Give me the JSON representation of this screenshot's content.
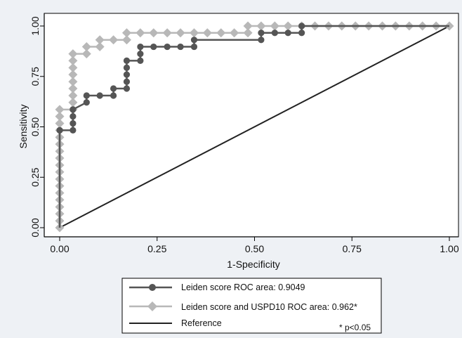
{
  "chart_data": {
    "type": "line",
    "xlabel": "1-Specificity",
    "ylabel": "Sensitivity",
    "xlim": [
      0,
      1
    ],
    "ylim": [
      0,
      1
    ],
    "xticks": [
      "0.00",
      "0.25",
      "0.50",
      "0.75",
      "1.00"
    ],
    "yticks": [
      "0.00",
      "0.25",
      "0.50",
      "0.75",
      "1.00"
    ],
    "grid": false,
    "legend_position": "bottom",
    "note": "* p<0.05",
    "series": [
      {
        "name": "Leiden score ROC area: 0.9049",
        "color": "#555555",
        "marker": "circle",
        "points": [
          [
            0,
            0
          ],
          [
            0,
            0.483
          ],
          [
            0.034,
            0.483
          ],
          [
            0.034,
            0.517
          ],
          [
            0.034,
            0.552
          ],
          [
            0.034,
            0.586
          ],
          [
            0.069,
            0.621
          ],
          [
            0.069,
            0.655
          ],
          [
            0.103,
            0.655
          ],
          [
            0.138,
            0.655
          ],
          [
            0.138,
            0.69
          ],
          [
            0.172,
            0.69
          ],
          [
            0.172,
            0.724
          ],
          [
            0.172,
            0.759
          ],
          [
            0.172,
            0.793
          ],
          [
            0.172,
            0.828
          ],
          [
            0.207,
            0.828
          ],
          [
            0.207,
            0.862
          ],
          [
            0.207,
            0.897
          ],
          [
            0.241,
            0.897
          ],
          [
            0.276,
            0.897
          ],
          [
            0.31,
            0.897
          ],
          [
            0.345,
            0.897
          ],
          [
            0.345,
            0.931
          ],
          [
            0.517,
            0.931
          ],
          [
            0.517,
            0.966
          ],
          [
            0.552,
            0.966
          ],
          [
            0.586,
            0.966
          ],
          [
            0.621,
            0.966
          ],
          [
            0.621,
            1.0
          ],
          [
            1.0,
            1.0
          ]
        ]
      },
      {
        "name": "Leiden score and USPD10 ROC area: 0.962*",
        "color": "#b8b8b8",
        "marker": "diamond",
        "points": [
          [
            0,
            0
          ],
          [
            0,
            0.034
          ],
          [
            0,
            0.069
          ],
          [
            0,
            0.103
          ],
          [
            0,
            0.138
          ],
          [
            0,
            0.172
          ],
          [
            0,
            0.207
          ],
          [
            0,
            0.241
          ],
          [
            0,
            0.276
          ],
          [
            0,
            0.31
          ],
          [
            0,
            0.345
          ],
          [
            0,
            0.379
          ],
          [
            0,
            0.414
          ],
          [
            0,
            0.448
          ],
          [
            0,
            0.483
          ],
          [
            0,
            0.517
          ],
          [
            0,
            0.552
          ],
          [
            0,
            0.586
          ],
          [
            0.034,
            0.586
          ],
          [
            0.034,
            0.621
          ],
          [
            0.034,
            0.655
          ],
          [
            0.034,
            0.69
          ],
          [
            0.034,
            0.724
          ],
          [
            0.034,
            0.759
          ],
          [
            0.034,
            0.793
          ],
          [
            0.034,
            0.828
          ],
          [
            0.034,
            0.862
          ],
          [
            0.069,
            0.862
          ],
          [
            0.069,
            0.897
          ],
          [
            0.103,
            0.897
          ],
          [
            0.103,
            0.931
          ],
          [
            0.138,
            0.931
          ],
          [
            0.172,
            0.931
          ],
          [
            0.172,
            0.966
          ],
          [
            0.207,
            0.966
          ],
          [
            0.241,
            0.966
          ],
          [
            0.276,
            0.966
          ],
          [
            0.31,
            0.966
          ],
          [
            0.345,
            0.966
          ],
          [
            0.379,
            0.966
          ],
          [
            0.414,
            0.966
          ],
          [
            0.448,
            0.966
          ],
          [
            0.483,
            0.966
          ],
          [
            0.483,
            1.0
          ],
          [
            0.517,
            1.0
          ],
          [
            0.552,
            1.0
          ],
          [
            0.586,
            1.0
          ],
          [
            0.621,
            1.0
          ],
          [
            0.655,
            1.0
          ],
          [
            0.69,
            1.0
          ],
          [
            0.724,
            1.0
          ],
          [
            0.759,
            1.0
          ],
          [
            0.793,
            1.0
          ],
          [
            0.828,
            1.0
          ],
          [
            0.862,
            1.0
          ],
          [
            0.897,
            1.0
          ],
          [
            0.931,
            1.0
          ],
          [
            0.966,
            1.0
          ],
          [
            1.0,
            1.0
          ]
        ]
      },
      {
        "name": "Reference",
        "color": "#222222",
        "marker": "none",
        "points": [
          [
            0,
            0
          ],
          [
            1,
            1
          ]
        ]
      }
    ]
  }
}
